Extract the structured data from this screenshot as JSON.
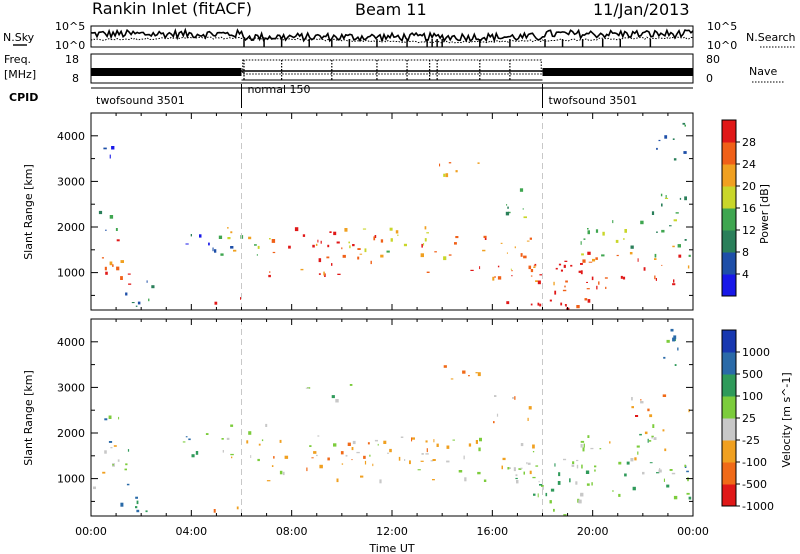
{
  "header": {
    "station": "Rankin Inlet (fitACF)",
    "beam": "Beam 11",
    "date": "11/Jan/2013"
  },
  "top_panels": {
    "nsky_label": "N.Sky",
    "nsky_ticks": [
      "10^5",
      "10^0"
    ],
    "nsearch_label": "N.Search",
    "nsearch_ticks": [
      "10^5",
      "10^0"
    ],
    "freq_label_1": "Freq.",
    "freq_label_2": "[MHz]",
    "freq_ticks": [
      "18",
      "8"
    ],
    "nave_label": "Nave",
    "nave_ticks": [
      "80",
      "0"
    ],
    "cpid_label": "CPID",
    "cpid_segments": [
      {
        "name": "twofsound 3501",
        "start_hour": 0,
        "end_hour": 6
      },
      {
        "name": "normal 150",
        "start_hour": 6,
        "end_hour": 18
      },
      {
        "name": "twofsound 3501",
        "start_hour": 18,
        "end_hour": 24
      }
    ]
  },
  "chart_data": [
    {
      "type": "heatmap",
      "title": "",
      "xlabel": "",
      "ylabel": "Slant Range [km]",
      "xlim": [
        0,
        24
      ],
      "ylim": [
        180,
        4500
      ],
      "yticks": [
        1000,
        2000,
        3000,
        4000
      ],
      "colorbar_label": "Power [dB]",
      "colorbar_ticks": [
        "4",
        "8",
        "12",
        "16",
        "20",
        "24",
        "28"
      ],
      "colorbar_range": [
        0,
        32
      ],
      "scatter_regions": [
        {
          "t0": 0.0,
          "t1": 1.6,
          "r0": 700,
          "r1": 1800,
          "level": 0.82
        },
        {
          "t0": 0.2,
          "t1": 1.2,
          "r0": 1800,
          "r1": 2400,
          "level": 0.38
        },
        {
          "t0": 0.3,
          "t1": 1.0,
          "r0": 3300,
          "r1": 3900,
          "level": 0.15
        },
        {
          "t0": 1.0,
          "t1": 2.6,
          "r0": 250,
          "r1": 900,
          "level": 0.3
        },
        {
          "t0": 3.6,
          "t1": 5.8,
          "r0": 1500,
          "r1": 2000,
          "level": 0.2
        },
        {
          "t0": 4.6,
          "t1": 6.4,
          "r0": 180,
          "r1": 500,
          "level": 0.88
        },
        {
          "t0": 5.0,
          "t1": 7.2,
          "r0": 1400,
          "r1": 2300,
          "level": 0.55
        },
        {
          "t0": 7.0,
          "t1": 11.5,
          "r0": 900,
          "r1": 2000,
          "level": 0.88
        },
        {
          "t0": 10.0,
          "t1": 13.5,
          "r0": 1300,
          "r1": 2100,
          "level": 0.66
        },
        {
          "t0": 13.2,
          "t1": 15.5,
          "r0": 3100,
          "r1": 3500,
          "level": 0.72
        },
        {
          "t0": 13.0,
          "t1": 17.8,
          "r0": 900,
          "r1": 1900,
          "level": 0.78
        },
        {
          "t0": 15.8,
          "t1": 17.5,
          "r0": 2200,
          "r1": 2900,
          "level": 0.4
        },
        {
          "t0": 16.5,
          "t1": 19.8,
          "r0": 200,
          "r1": 1500,
          "level": 0.92
        },
        {
          "t0": 17.8,
          "t1": 24.0,
          "r0": 600,
          "r1": 1400,
          "level": 0.9
        },
        {
          "t0": 19.5,
          "t1": 24.0,
          "r0": 1300,
          "r1": 2200,
          "level": 0.5
        },
        {
          "t0": 21.5,
          "t1": 24.0,
          "r0": 2300,
          "r1": 2900,
          "level": 0.45
        },
        {
          "t0": 22.5,
          "t1": 24.0,
          "r0": 3500,
          "r1": 4300,
          "level": 0.25
        }
      ]
    },
    {
      "type": "heatmap",
      "title": "",
      "xlabel": "Time UT",
      "ylabel": "Slant Range [km]",
      "xlim": [
        0,
        24
      ],
      "ylim": [
        180,
        4500
      ],
      "xticks": [
        "00:00",
        "04:00",
        "08:00",
        "12:00",
        "16:00",
        "20:00",
        "00:00"
      ],
      "yticks": [
        1000,
        2000,
        3000,
        4000
      ],
      "colorbar_label": "Velocity [m s^-1]",
      "colorbar_ticks": [
        "1000",
        "500",
        "100",
        "25",
        "-25",
        "-100",
        "-500",
        "-1000"
      ],
      "colorbar_range": [
        -1000,
        1000
      ],
      "scatter_regions": [
        {
          "t0": 0.0,
          "t1": 1.6,
          "r0": 700,
          "r1": 1800,
          "level": 0.5
        },
        {
          "t0": 0.2,
          "t1": 1.2,
          "r0": 1800,
          "r1": 2400,
          "level": 0.35
        },
        {
          "t0": 1.0,
          "t1": 2.6,
          "r0": 250,
          "r1": 900,
          "level": 0.3
        },
        {
          "t0": 3.6,
          "t1": 5.8,
          "r0": 1500,
          "r1": 2000,
          "level": 0.3
        },
        {
          "t0": 4.6,
          "t1": 6.4,
          "r0": 180,
          "r1": 500,
          "level": 0.72
        },
        {
          "t0": 5.0,
          "t1": 7.2,
          "r0": 1400,
          "r1": 2300,
          "level": 0.55
        },
        {
          "t0": 7.0,
          "t1": 11.5,
          "r0": 900,
          "r1": 2000,
          "level": 0.62
        },
        {
          "t0": 8.5,
          "t1": 10.5,
          "r0": 2700,
          "r1": 3100,
          "level": 0.5
        },
        {
          "t0": 10.0,
          "t1": 13.5,
          "r0": 1300,
          "r1": 2100,
          "level": 0.7
        },
        {
          "t0": 13.2,
          "t1": 15.5,
          "r0": 3100,
          "r1": 3500,
          "level": 0.72
        },
        {
          "t0": 13.0,
          "t1": 17.8,
          "r0": 900,
          "r1": 1900,
          "level": 0.55
        },
        {
          "t0": 15.8,
          "t1": 17.5,
          "r0": 2200,
          "r1": 2900,
          "level": 0.7
        },
        {
          "t0": 16.5,
          "t1": 19.8,
          "r0": 200,
          "r1": 1500,
          "level": 0.45
        },
        {
          "t0": 17.8,
          "t1": 24.0,
          "r0": 600,
          "r1": 1400,
          "level": 0.4
        },
        {
          "t0": 19.5,
          "t1": 24.0,
          "r0": 1300,
          "r1": 2200,
          "level": 0.5
        },
        {
          "t0": 21.5,
          "t1": 24.0,
          "r0": 2300,
          "r1": 2900,
          "level": 0.75
        },
        {
          "t0": 22.5,
          "t1": 24.0,
          "r0": 3500,
          "r1": 4300,
          "level": 0.3
        }
      ]
    }
  ],
  "colors": {
    "power_scale": [
      "#1818e8",
      "#1e4fa8",
      "#2a7f5a",
      "#3fa650",
      "#c9d62a",
      "#f0a020",
      "#f06018",
      "#e01818"
    ],
    "velocity_scale": [
      "#1838b0",
      "#2a6aa8",
      "#2f9a5a",
      "#7ccc3c",
      "#c8c8c8",
      "#f0a020",
      "#f06a18",
      "#e01818"
    ],
    "nsky_line": "#000000",
    "marker_line": "#c8c8c8"
  }
}
